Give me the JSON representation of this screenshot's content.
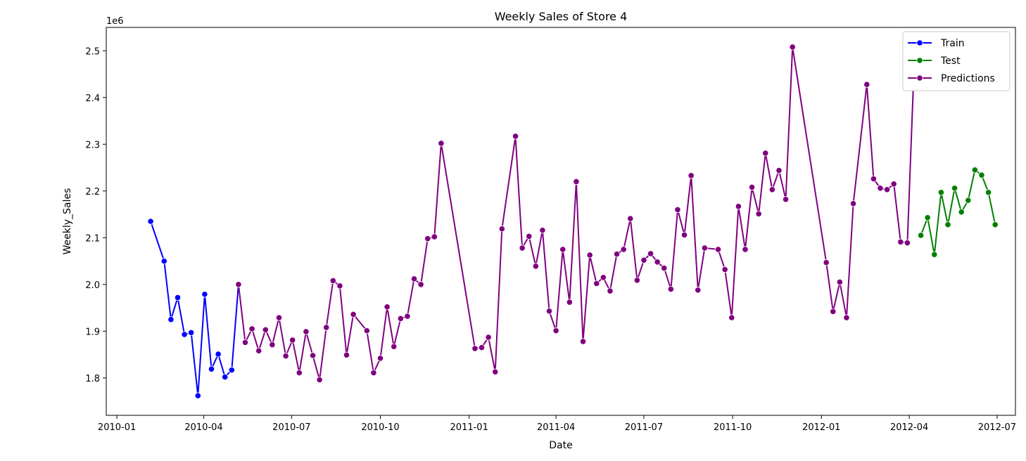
{
  "chart_data": {
    "type": "line",
    "title": "Weekly Sales of Store 4",
    "xlabel": "Date",
    "ylabel": "Weekly_Sales",
    "y_offset_label": "1e6",
    "xlim": [
      "2009-12-21",
      "2012-07-20"
    ],
    "ylim": [
      1.72,
      2.55
    ],
    "x_ticks": [
      "2010-01",
      "2010-04",
      "2010-07",
      "2010-10",
      "2011-01",
      "2011-04",
      "2011-07",
      "2011-10",
      "2012-01",
      "2012-04",
      "2012-07"
    ],
    "y_ticks": [
      "1.8",
      "1.9",
      "2.0",
      "2.1",
      "2.2",
      "2.3",
      "2.4",
      "2.5"
    ],
    "grid": false,
    "legend_position": "top-right",
    "series": [
      {
        "name": "Train",
        "color": "#0000ff",
        "points": [
          [
            "2010-02-05",
            2.135
          ],
          [
            "2010-02-19",
            2.05
          ],
          [
            "2010-02-26",
            1.925
          ],
          [
            "2010-03-05",
            1.972
          ],
          [
            "2010-03-12",
            1.893
          ],
          [
            "2010-03-19",
            1.897
          ],
          [
            "2010-03-26",
            1.762
          ],
          [
            "2010-04-02",
            1.979
          ],
          [
            "2010-04-09",
            1.819
          ],
          [
            "2010-04-16",
            1.851
          ],
          [
            "2010-04-23",
            1.802
          ],
          [
            "2010-04-30",
            1.817
          ],
          [
            "2010-05-07",
            2.0
          ]
        ]
      },
      {
        "name": "Predictions",
        "color": "#800080",
        "points": [
          [
            "2010-05-07",
            2.0
          ],
          [
            "2010-05-14",
            1.876
          ],
          [
            "2010-05-21",
            1.905
          ],
          [
            "2010-05-28",
            1.858
          ],
          [
            "2010-06-04",
            1.903
          ],
          [
            "2010-06-11",
            1.871
          ],
          [
            "2010-06-18",
            1.929
          ],
          [
            "2010-06-25",
            1.847
          ],
          [
            "2010-07-02",
            1.881
          ],
          [
            "2010-07-09",
            1.811
          ],
          [
            "2010-07-16",
            1.899
          ],
          [
            "2010-07-23",
            1.848
          ],
          [
            "2010-07-30",
            1.796
          ],
          [
            "2010-08-06",
            1.908
          ],
          [
            "2010-08-13",
            2.008
          ],
          [
            "2010-08-20",
            1.997
          ],
          [
            "2010-08-27",
            1.849
          ],
          [
            "2010-09-03",
            1.936
          ],
          [
            "2010-09-17",
            1.901
          ],
          [
            "2010-09-24",
            1.811
          ],
          [
            "2010-10-01",
            1.842
          ],
          [
            "2010-10-08",
            1.952
          ],
          [
            "2010-10-15",
            1.867
          ],
          [
            "2010-10-22",
            1.927
          ],
          [
            "2010-10-29",
            1.932
          ],
          [
            "2010-11-05",
            2.012
          ],
          [
            "2010-11-12",
            2.0
          ],
          [
            "2010-11-19",
            2.098
          ],
          [
            "2010-11-26",
            2.102
          ],
          [
            "2010-12-03",
            2.302
          ],
          [
            "2011-01-07",
            1.863
          ],
          [
            "2011-01-14",
            1.865
          ],
          [
            "2011-01-21",
            1.887
          ],
          [
            "2011-01-28",
            1.813
          ],
          [
            "2011-02-04",
            2.119
          ],
          [
            "2011-02-18",
            2.317
          ],
          [
            "2011-02-25",
            2.078
          ],
          [
            "2011-03-04",
            2.103
          ],
          [
            "2011-03-11",
            2.039
          ],
          [
            "2011-03-18",
            2.116
          ],
          [
            "2011-03-25",
            1.943
          ],
          [
            "2011-04-01",
            1.901
          ],
          [
            "2011-04-08",
            2.075
          ],
          [
            "2011-04-15",
            1.962
          ],
          [
            "2011-04-22",
            2.22
          ],
          [
            "2011-04-29",
            1.878
          ],
          [
            "2011-05-06",
            2.063
          ],
          [
            "2011-05-13",
            2.002
          ],
          [
            "2011-05-20",
            2.015
          ],
          [
            "2011-05-27",
            1.986
          ],
          [
            "2011-06-03",
            2.065
          ],
          [
            "2011-06-10",
            2.075
          ],
          [
            "2011-06-17",
            2.141
          ],
          [
            "2011-06-24",
            2.009
          ],
          [
            "2011-07-01",
            2.052
          ],
          [
            "2011-07-08",
            2.066
          ],
          [
            "2011-07-15",
            2.048
          ],
          [
            "2011-07-22",
            2.035
          ],
          [
            "2011-07-29",
            1.99
          ],
          [
            "2011-08-05",
            2.16
          ],
          [
            "2011-08-12",
            2.106
          ],
          [
            "2011-08-19",
            2.233
          ],
          [
            "2011-08-26",
            1.988
          ],
          [
            "2011-09-02",
            2.078
          ],
          [
            "2011-09-16",
            2.075
          ],
          [
            "2011-09-23",
            2.032
          ],
          [
            "2011-09-30",
            1.929
          ],
          [
            "2011-10-07",
            2.167
          ],
          [
            "2011-10-14",
            2.075
          ],
          [
            "2011-10-21",
            2.208
          ],
          [
            "2011-10-28",
            2.151
          ],
          [
            "2011-11-04",
            2.281
          ],
          [
            "2011-11-11",
            2.203
          ],
          [
            "2011-11-18",
            2.244
          ],
          [
            "2011-11-25",
            2.182
          ],
          [
            "2011-12-02",
            2.508
          ],
          [
            "2012-01-06",
            2.047
          ],
          [
            "2012-01-13",
            1.942
          ],
          [
            "2012-01-20",
            2.005
          ],
          [
            "2012-01-27",
            1.929
          ],
          [
            "2012-02-03",
            2.173
          ],
          [
            "2012-02-17",
            2.428
          ],
          [
            "2012-02-24",
            2.226
          ],
          [
            "2012-03-02",
            2.206
          ],
          [
            "2012-03-09",
            2.203
          ],
          [
            "2012-03-16",
            2.215
          ],
          [
            "2012-03-23",
            2.091
          ],
          [
            "2012-03-30",
            2.089
          ],
          [
            "2012-04-06",
            2.469
          ]
        ]
      },
      {
        "name": "Test",
        "color": "#008000",
        "points": [
          [
            "2012-04-13",
            2.105
          ],
          [
            "2012-04-20",
            2.143
          ],
          [
            "2012-04-27",
            2.064
          ],
          [
            "2012-05-04",
            2.197
          ],
          [
            "2012-05-11",
            2.128
          ],
          [
            "2012-05-18",
            2.206
          ],
          [
            "2012-05-25",
            2.155
          ],
          [
            "2012-06-01",
            2.18
          ],
          [
            "2012-06-08",
            2.245
          ],
          [
            "2012-06-15",
            2.234
          ],
          [
            "2012-06-22",
            2.197
          ],
          [
            "2012-06-29",
            2.128
          ]
        ]
      }
    ],
    "legend": [
      "Train",
      "Test",
      "Predictions"
    ]
  }
}
